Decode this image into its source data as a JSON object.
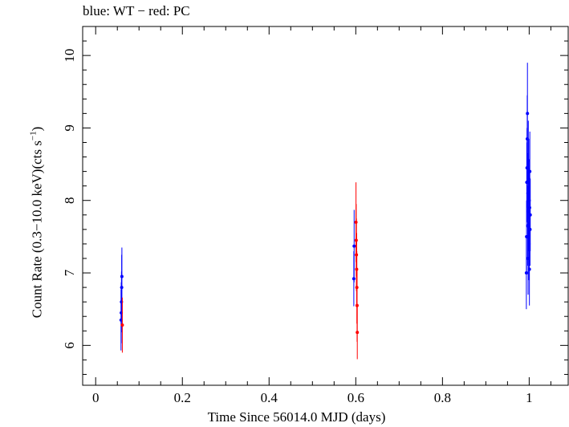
{
  "chart_data": {
    "type": "scatter",
    "title": "blue: WT − red: PC",
    "xlabel": "Time Since 56014.0 MJD (days)",
    "ylabel_main": "Count Rate (0.3−10.0 keV)(cts s",
    "ylabel_sup": "−1",
    "ylabel_close": ")",
    "xlim": [
      -0.03,
      1.09
    ],
    "ylim": [
      5.45,
      10.4
    ],
    "xticks": [
      0,
      0.2,
      0.4,
      0.6,
      0.8,
      1
    ],
    "xtick_labels": [
      "0",
      "0.2",
      "0.4",
      "0.6",
      "0.8",
      "1"
    ],
    "yticks": [
      6,
      7,
      8,
      9,
      10
    ],
    "ytick_labels": [
      "6",
      "7",
      "8",
      "9",
      "10"
    ],
    "grid": false,
    "series": [
      {
        "name": "WT",
        "color": "#0000ff",
        "points": [
          {
            "x": 0.0585,
            "y": 6.35,
            "err": 0.42
          },
          {
            "x": 0.059,
            "y": 6.45,
            "err": 0.42
          },
          {
            "x": 0.0595,
            "y": 6.6,
            "err": 0.42
          },
          {
            "x": 0.06,
            "y": 6.8,
            "err": 0.45
          },
          {
            "x": 0.0605,
            "y": 6.95,
            "err": 0.4
          },
          {
            "x": 0.5955,
            "y": 6.92,
            "err": 0.38
          },
          {
            "x": 0.5962,
            "y": 7.37,
            "err": 0.5
          },
          {
            "x": 0.9935,
            "y": 7.0,
            "err": 0.5
          },
          {
            "x": 0.994,
            "y": 7.5,
            "err": 0.5
          },
          {
            "x": 0.9945,
            "y": 8.25,
            "err": 0.55
          },
          {
            "x": 0.995,
            "y": 8.45,
            "err": 0.55
          },
          {
            "x": 0.9955,
            "y": 8.85,
            "err": 0.6
          },
          {
            "x": 0.996,
            "y": 9.2,
            "err": 0.7
          },
          {
            "x": 0.9965,
            "y": 7.65,
            "err": 0.55
          },
          {
            "x": 0.997,
            "y": 8.1,
            "err": 0.55
          },
          {
            "x": 0.9975,
            "y": 7.2,
            "err": 0.5
          },
          {
            "x": 0.998,
            "y": 8.55,
            "err": 0.55
          },
          {
            "x": 0.9985,
            "y": 7.85,
            "err": 0.55
          },
          {
            "x": 0.999,
            "y": 8.3,
            "err": 0.55
          },
          {
            "x": 0.9995,
            "y": 7.4,
            "err": 0.5
          },
          {
            "x": 1.0,
            "y": 8.0,
            "err": 0.55
          },
          {
            "x": 1.0005,
            "y": 7.05,
            "err": 0.5
          },
          {
            "x": 1.001,
            "y": 7.9,
            "err": 0.55
          },
          {
            "x": 1.0015,
            "y": 8.4,
            "err": 0.55
          },
          {
            "x": 1.002,
            "y": 7.6,
            "err": 0.5
          },
          {
            "x": 1.0025,
            "y": 7.8,
            "err": 0.5
          }
        ]
      },
      {
        "name": "PC",
        "color": "#ff0000",
        "points": [
          {
            "x": 0.0615,
            "y": 6.28,
            "err": 0.38
          },
          {
            "x": 0.6005,
            "y": 7.7,
            "err": 0.55
          },
          {
            "x": 0.601,
            "y": 7.45,
            "err": 0.5
          },
          {
            "x": 0.6015,
            "y": 7.25,
            "err": 0.5
          },
          {
            "x": 0.602,
            "y": 7.05,
            "err": 0.5
          },
          {
            "x": 0.6025,
            "y": 6.8,
            "err": 0.5
          },
          {
            "x": 0.603,
            "y": 6.55,
            "err": 0.5
          },
          {
            "x": 0.6035,
            "y": 6.18,
            "err": 0.37
          }
        ]
      }
    ]
  }
}
